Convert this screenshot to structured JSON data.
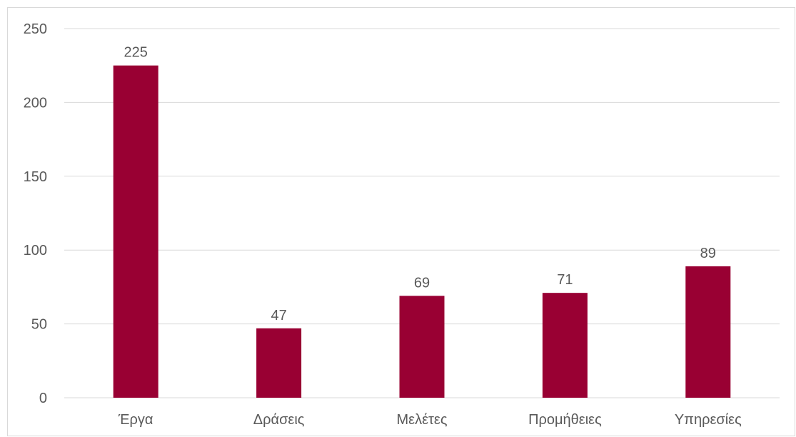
{
  "chart_data": {
    "type": "bar",
    "categories": [
      "Έργα",
      "Δράσεις",
      "Μελέτες",
      "Προμήθειες",
      "Υπηρεσίες"
    ],
    "values": [
      225,
      47,
      69,
      71,
      89
    ],
    "data_labels": [
      "225",
      "47",
      "69",
      "71",
      "89"
    ],
    "y_ticks": [
      "0",
      "50",
      "100",
      "150",
      "200",
      "250"
    ],
    "ylim": [
      0,
      250
    ],
    "grid": true,
    "legend": "none",
    "colors": {
      "bar": "#990033",
      "grid": "#d9d9d9",
      "text": "#595959"
    }
  }
}
